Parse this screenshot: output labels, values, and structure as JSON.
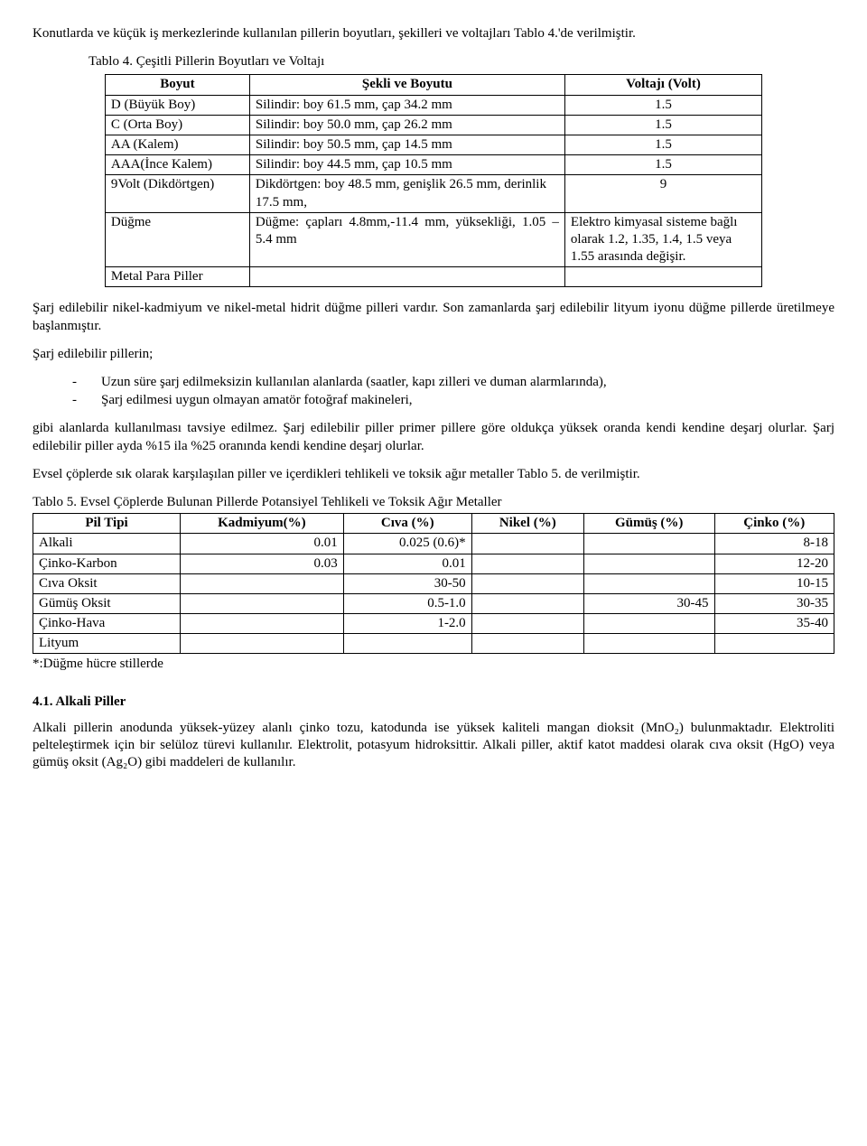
{
  "intro": "Konutlarda ve küçük iş merkezlerinde kullanılan pillerin boyutları, şekilleri ve voltajları  Tablo  4.'de verilmiştir.",
  "t4": {
    "caption": "Tablo 4. Çeşitli Pillerin Boyutları ve Voltajı",
    "h1": "Boyut",
    "h2": "Şekli ve Boyutu",
    "h3": "Voltajı (Volt)",
    "rows": [
      {
        "c1": "D (Büyük Boy)",
        "c2": "Silindir: boy 61.5 mm, çap 34.2 mm",
        "c3": "1.5"
      },
      {
        "c1": "C (Orta Boy)",
        "c2": "Silindir: boy 50.0 mm, çap 26.2 mm",
        "c3": "1.5"
      },
      {
        "c1": "AA (Kalem)",
        "c2": "Silindir: boy 50.5 mm, çap 14.5 mm",
        "c3": "1.5"
      },
      {
        "c1": "AAA(İnce Kalem)",
        "c2": "Silindir: boy 44.5 mm, çap 10.5 mm",
        "c3": "1.5"
      },
      {
        "c1": "9Volt (Dikdörtgen)",
        "c2": "Dikdörtgen: boy 48.5 mm, genişlik 26.5 mm, derinlik 17.5 mm,",
        "c3": "9"
      },
      {
        "c1": "Düğme",
        "c2": "Düğme: çapları 4.8mm,-11.4 mm, yüksekliği, 1.05 – 5.4 mm",
        "c3": "Elektro kimyasal sisteme bağlı olarak 1.2, 1.35, 1.4, 1.5 veya 1.55 arasında değişir."
      },
      {
        "c1": "Metal Para Piller",
        "c2": "",
        "c3": ""
      }
    ]
  },
  "p_after_t4": "Şarj edilebilir nikel-kadmiyum ve nikel-metal hidrit düğme pilleri vardır. Son zamanlarda şarj edilebilir lityum iyonu düğme pillerde üretilmeye başlanmıştır.",
  "p_list_intro": "Şarj edilebilir pillerin;",
  "list": [
    "Uzun süre şarj edilmeksizin kullanılan alanlarda (saatler, kapı zilleri ve duman alarmlarında),",
    "Şarj edilmesi uygun olmayan amatör fotoğraf makineleri,"
  ],
  "p_after_list": "gibi alanlarda kullanılması tavsiye edilmez. Şarj edilebilir piller primer pillere göre oldukça yüksek oranda kendi kendine deşarj olurlar. Şarj edilebilir piller ayda %15 ila %25 oranında kendi kendine deşarj olurlar.",
  "p_before_t5": "Evsel çöplerde sık olarak karşılaşılan piller ve içerdikleri tehlikeli ve toksik ağır metaller Tablo 5. de verilmiştir.",
  "t5": {
    "caption": "Tablo 5. Evsel Çöplerde Bulunan Pillerde Potansiyel Tehlikeli ve Toksik Ağır Metaller",
    "headers": [
      "Pil Tipi",
      "Kadmiyum(%)",
      "Cıva (%)",
      "Nikel (%)",
      "Gümüş (%)",
      "Çinko (%)"
    ],
    "rows": [
      {
        "label": "Alkali",
        "cd": "0.01",
        "hg": "0.025 (0.6)*",
        "ni": "",
        "ag": "",
        "zn": "8-18"
      },
      {
        "label": "Çinko-Karbon",
        "cd": "0.03",
        "hg": "0.01",
        "ni": "",
        "ag": "",
        "zn": "12-20"
      },
      {
        "label": "Cıva Oksit",
        "cd": "",
        "hg": "30-50",
        "ni": "",
        "ag": "",
        "zn": "10-15"
      },
      {
        "label": "Gümüş Oksit",
        "cd": "",
        "hg": "0.5-1.0",
        "ni": "",
        "ag": "30-45",
        "zn": "30-35"
      },
      {
        "label": "Çinko-Hava",
        "cd": "",
        "hg": "1-2.0",
        "ni": "",
        "ag": "",
        "zn": "35-40"
      },
      {
        "label": "Lityum",
        "cd": "",
        "hg": "",
        "ni": "",
        "ag": "",
        "zn": ""
      }
    ],
    "footnote": "*:Düğme hücre stillerde"
  },
  "sec41_head": "4.1. Alkali Piller",
  "sec41_body": "Alkali pillerin anodunda yüksek-yüzey alanlı çinko tozu, katodunda ise yüksek kaliteli mangan dioksit (MnO₂) bulunmaktadır. Elektroliti pelteleştirmek için bir selüloz türevi kullanılır. Elektrolit, potasyum hidroksittir. Alkali piller, aktif katot maddesi olarak cıva oksit (HgO) veya gümüş oksit (Ag₂O) gibi maddeleri de kullanılır."
}
